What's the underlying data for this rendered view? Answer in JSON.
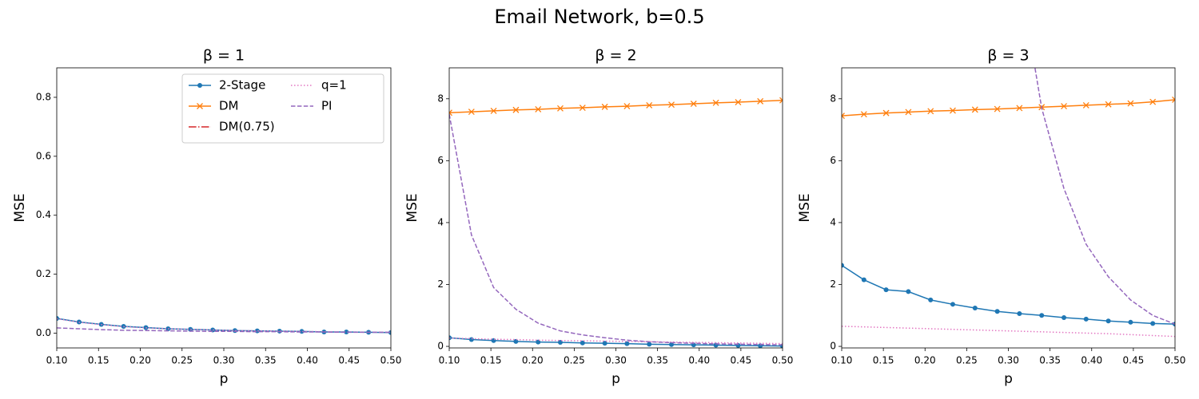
{
  "title": "Email Network, b=0.5",
  "chart_data": [
    {
      "type": "line",
      "title": "β = 1",
      "xlabel": "p",
      "ylabel": "MSE",
      "x": [
        0.1,
        0.1267,
        0.1533,
        0.18,
        0.2067,
        0.2333,
        0.26,
        0.2867,
        0.3133,
        0.34,
        0.3667,
        0.3933,
        0.42,
        0.4467,
        0.4733,
        0.5
      ],
      "xlim": [
        0.1,
        0.5
      ],
      "xticks": [
        {
          "value": 0.1,
          "label": "0.10"
        },
        {
          "value": 0.15,
          "label": "0.15"
        },
        {
          "value": 0.2,
          "label": "0.20"
        },
        {
          "value": 0.25,
          "label": "0.25"
        },
        {
          "value": 0.3,
          "label": "0.30"
        },
        {
          "value": 0.35,
          "label": "0.35"
        },
        {
          "value": 0.4,
          "label": "0.40"
        },
        {
          "value": 0.45,
          "label": "0.45"
        },
        {
          "value": 0.5,
          "label": "0.50"
        }
      ],
      "ylim": [
        -0.05,
        0.9
      ],
      "yticks": [
        {
          "value": 0,
          "label": "0.0"
        },
        {
          "value": 0.2,
          "label": "0.2"
        },
        {
          "value": 0.4,
          "label": "0.4"
        },
        {
          "value": 0.6,
          "label": "0.6"
        },
        {
          "value": 0.8,
          "label": "0.8"
        }
      ],
      "legend": "upper right",
      "legend_columns": 2,
      "series": [
        {
          "name": "2-Stage",
          "color": "#1f77b4",
          "style": "solid",
          "marker": "o",
          "values": [
            0.05,
            0.038,
            0.03,
            0.023,
            0.019,
            0.015,
            0.013,
            0.011,
            0.009,
            0.008,
            0.007,
            0.006,
            0.004,
            0.004,
            0.003,
            0.002
          ]
        },
        {
          "name": "DM",
          "color": "#ff7f0e",
          "style": "solid",
          "marker": "x",
          "values": [
            null,
            null,
            null,
            null,
            null,
            null,
            null,
            null,
            null,
            null,
            null,
            null,
            null,
            null,
            null,
            null
          ]
        },
        {
          "name": "DM(0.75)",
          "color": "#d62728",
          "style": "dashdot",
          "marker": null,
          "values": [
            null,
            null,
            null,
            null,
            null,
            null,
            null,
            null,
            null,
            null,
            null,
            null,
            null,
            null,
            null,
            null
          ]
        },
        {
          "name": "q=1",
          "color": "#e377c2",
          "style": "dotted",
          "marker": null,
          "values": [
            0.049,
            0.037,
            0.029,
            0.022,
            0.018,
            0.015,
            0.013,
            0.011,
            0.009,
            0.008,
            0.007,
            0.006,
            0.005,
            0.004,
            0.003,
            0.003
          ]
        },
        {
          "name": "PI",
          "color": "#9467bd",
          "style": "dashed",
          "marker": null,
          "values": [
            0.018,
            0.015,
            0.012,
            0.01,
            0.009,
            0.008,
            0.007,
            0.006,
            0.006,
            0.005,
            0.005,
            0.004,
            0.004,
            0.003,
            0.003,
            0.003
          ]
        }
      ]
    },
    {
      "type": "line",
      "title": "β = 2",
      "xlabel": "p",
      "ylabel": "MSE",
      "x": [
        0.1,
        0.1267,
        0.1533,
        0.18,
        0.2067,
        0.2333,
        0.26,
        0.2867,
        0.3133,
        0.34,
        0.3667,
        0.3933,
        0.42,
        0.4467,
        0.4733,
        0.5
      ],
      "xlim": [
        0.1,
        0.5
      ],
      "xticks": [
        {
          "value": 0.1,
          "label": "0.10"
        },
        {
          "value": 0.15,
          "label": "0.15"
        },
        {
          "value": 0.2,
          "label": "0.20"
        },
        {
          "value": 0.25,
          "label": "0.25"
        },
        {
          "value": 0.3,
          "label": "0.30"
        },
        {
          "value": 0.35,
          "label": "0.35"
        },
        {
          "value": 0.4,
          "label": "0.40"
        },
        {
          "value": 0.45,
          "label": "0.45"
        },
        {
          "value": 0.5,
          "label": "0.50"
        }
      ],
      "ylim": [
        -0.05,
        9
      ],
      "yticks": [
        0,
        2,
        4,
        6,
        8
      ],
      "series": [
        {
          "color": "#1f77b4",
          "style": "solid",
          "marker": "o",
          "values": [
            0.28,
            0.22,
            0.19,
            0.16,
            0.14,
            0.13,
            0.11,
            0.1,
            0.09,
            0.07,
            0.06,
            0.05,
            0.04,
            0.03,
            0.02,
            0.01
          ]
        },
        {
          "color": "#ff7f0e",
          "style": "solid",
          "marker": "x",
          "values": [
            7.55,
            7.58,
            7.61,
            7.64,
            7.66,
            7.69,
            7.71,
            7.74,
            7.76,
            7.79,
            7.81,
            7.84,
            7.87,
            7.89,
            7.92,
            7.95
          ]
        },
        {
          "color": "#e377c2",
          "style": "dotted",
          "marker": null,
          "values": [
            0.27,
            0.25,
            0.23,
            0.22,
            0.2,
            0.19,
            0.18,
            0.17,
            0.16,
            0.15,
            0.14,
            0.13,
            0.12,
            0.11,
            0.1,
            0.09
          ]
        },
        {
          "color": "#9467bd",
          "style": "dashed",
          "marker": null,
          "values": [
            7.5,
            3.6,
            1.9,
            1.2,
            0.75,
            0.5,
            0.37,
            0.28,
            0.2,
            0.15,
            0.12,
            0.1,
            0.08,
            0.07,
            0.06,
            0.05
          ]
        }
      ]
    },
    {
      "type": "line",
      "title": "β = 3",
      "xlabel": "p",
      "ylabel": "MSE",
      "x": [
        0.1,
        0.1267,
        0.1533,
        0.18,
        0.2067,
        0.2333,
        0.26,
        0.2867,
        0.3133,
        0.34,
        0.3667,
        0.3933,
        0.42,
        0.4467,
        0.4733,
        0.5
      ],
      "xlim": [
        0.1,
        0.5
      ],
      "xticks": [
        {
          "value": 0.1,
          "label": "0.10"
        },
        {
          "value": 0.15,
          "label": "0.15"
        },
        {
          "value": 0.2,
          "label": "0.20"
        },
        {
          "value": 0.25,
          "label": "0.25"
        },
        {
          "value": 0.3,
          "label": "0.30"
        },
        {
          "value": 0.35,
          "label": "0.35"
        },
        {
          "value": 0.4,
          "label": "0.40"
        },
        {
          "value": 0.45,
          "label": "0.45"
        },
        {
          "value": 0.5,
          "label": "0.50"
        }
      ],
      "ylim": [
        -0.05,
        9
      ],
      "yticks": [
        0,
        2,
        4,
        6,
        8
      ],
      "series": [
        {
          "color": "#1f77b4",
          "style": "solid",
          "marker": "o",
          "values": [
            2.62,
            2.15,
            1.83,
            1.77,
            1.5,
            1.36,
            1.24,
            1.13,
            1.06,
            1.0,
            0.93,
            0.88,
            0.82,
            0.78,
            0.74,
            0.72
          ]
        },
        {
          "color": "#ff7f0e",
          "style": "solid",
          "marker": "x",
          "values": [
            7.45,
            7.5,
            7.54,
            7.57,
            7.6,
            7.62,
            7.65,
            7.67,
            7.7,
            7.73,
            7.76,
            7.79,
            7.82,
            7.85,
            7.9,
            7.97
          ]
        },
        {
          "color": "#e377c2",
          "style": "dotted",
          "marker": null,
          "values": [
            0.65,
            0.63,
            0.61,
            0.59,
            0.57,
            0.55,
            0.53,
            0.51,
            0.49,
            0.47,
            0.45,
            0.43,
            0.41,
            0.38,
            0.35,
            0.32
          ]
        },
        {
          "color": "#9467bd",
          "style": "dashed",
          "marker": null,
          "values": [
            null,
            null,
            null,
            null,
            null,
            null,
            null,
            null,
            12,
            7.7,
            5.1,
            3.3,
            2.25,
            1.5,
            1.0,
            0.72
          ]
        }
      ]
    }
  ]
}
